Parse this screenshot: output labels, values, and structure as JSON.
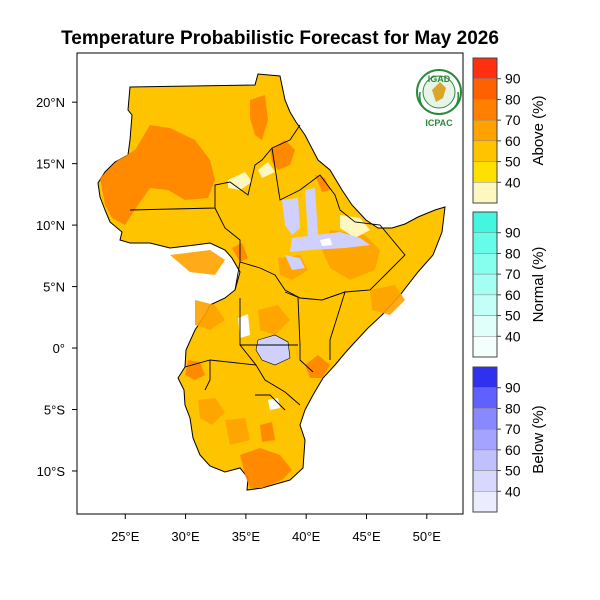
{
  "title": "Temperature Probabilistic Forecast for May 2026",
  "logo": {
    "top_text": "IGAD",
    "bottom_text": "ICPAC"
  },
  "axes": {
    "x_ticks": [
      {
        "value": 25,
        "label": "25°E"
      },
      {
        "value": 30,
        "label": "30°E"
      },
      {
        "value": 35,
        "label": "35°E"
      },
      {
        "value": 40,
        "label": "40°E"
      },
      {
        "value": 45,
        "label": "45°E"
      },
      {
        "value": 50,
        "label": "50°E"
      }
    ],
    "y_ticks": [
      {
        "value": 20,
        "label": "20°N"
      },
      {
        "value": 15,
        "label": "15°N"
      },
      {
        "value": 10,
        "label": "10°N"
      },
      {
        "value": 5,
        "label": "5°N"
      },
      {
        "value": 0,
        "label": "0°"
      },
      {
        "value": -5,
        "label": "5°S"
      },
      {
        "value": -10,
        "label": "10°S"
      }
    ],
    "lon_range": [
      21,
      53
    ],
    "lat_range": [
      -13.5,
      24
    ]
  },
  "colorbars": [
    {
      "title": "Above (%)",
      "levels": [
        "40",
        "50",
        "60",
        "70",
        "80",
        "90"
      ],
      "colors": [
        "#fff7c0",
        "#ffe000",
        "#ffc400",
        "#ffa200",
        "#ff8000",
        "#ff6000",
        "#ff3010"
      ]
    },
    {
      "title": "Normal (%)",
      "levels": [
        "40",
        "50",
        "60",
        "70",
        "80",
        "90"
      ],
      "colors": [
        "#f2fffd",
        "#e0fffa",
        "#c2fff6",
        "#a4fff2",
        "#86ffee",
        "#66fde8",
        "#44f6e0"
      ]
    },
    {
      "title": "Below (%)",
      "levels": [
        "40",
        "50",
        "60",
        "70",
        "80",
        "90"
      ],
      "colors": [
        "#ececff",
        "#d8d8ff",
        "#c0c0ff",
        "#a4a4ff",
        "#8888ff",
        "#6060ff",
        "#3030f0"
      ]
    }
  ],
  "map_colors": {
    "above_50": "#ffc400",
    "above_60": "#ffa200",
    "above_70": "#ff8000",
    "above_40": "#fff7c0",
    "normal": "#e8fffb",
    "below_40": "#d8d8ff",
    "below_50": "#c0c0ff",
    "no_signal": "#ffffff"
  }
}
